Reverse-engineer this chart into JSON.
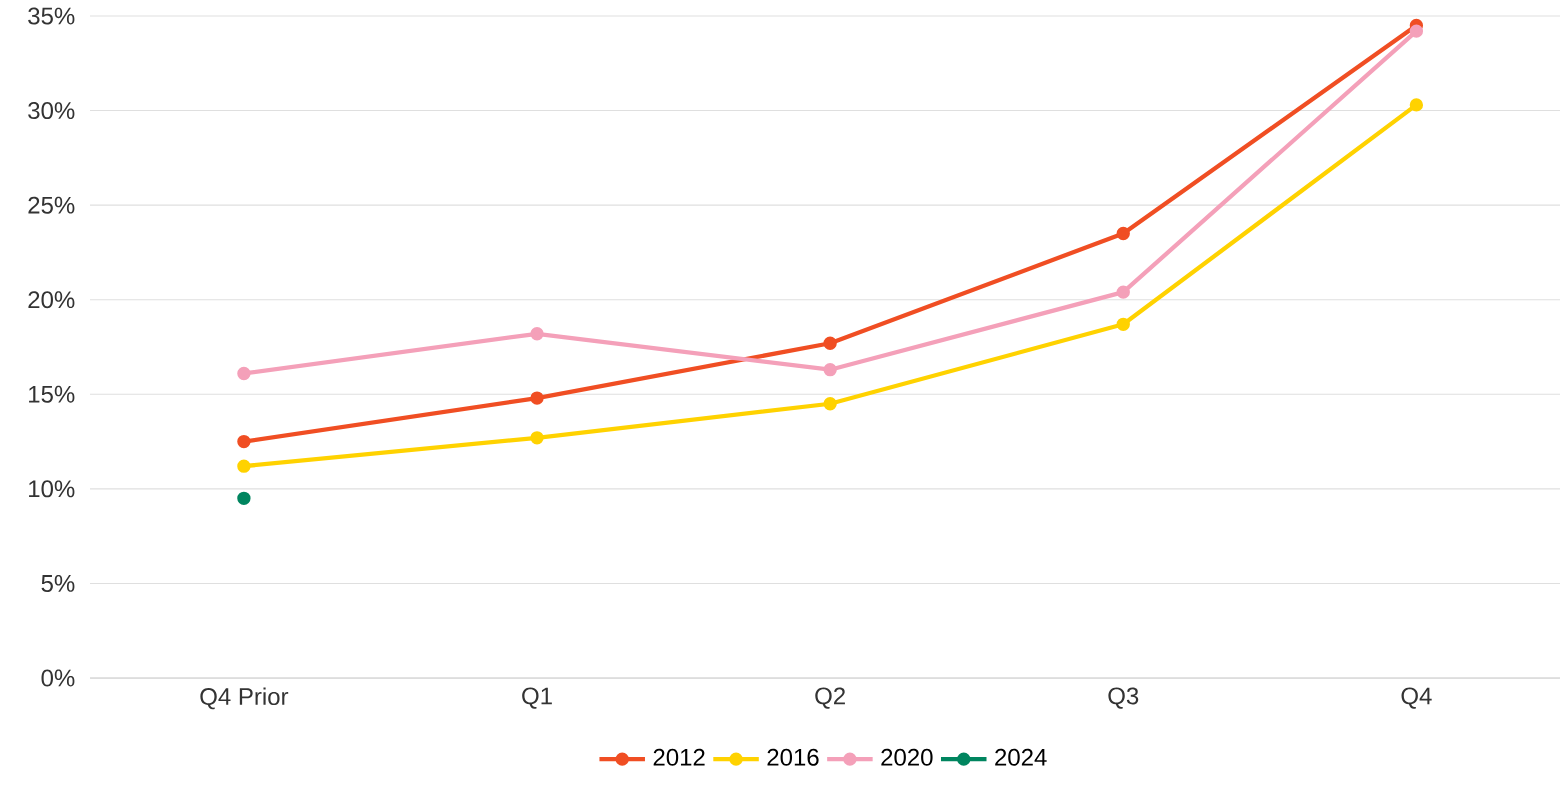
{
  "chart_data": {
    "type": "line",
    "categories": [
      "Q4 Prior",
      "Q1",
      "Q2",
      "Q3",
      "Q4"
    ],
    "series": [
      {
        "name": "2012",
        "color": "#f04e23",
        "values": [
          12.5,
          14.8,
          17.7,
          23.5,
          34.5
        ]
      },
      {
        "name": "2016",
        "color": "#ffd200",
        "values": [
          11.2,
          12.7,
          14.5,
          18.7,
          30.3
        ]
      },
      {
        "name": "2020",
        "color": "#f4a0b9",
        "values": [
          16.1,
          18.2,
          16.3,
          20.4,
          34.2
        ]
      },
      {
        "name": "2024",
        "color": "#00855f",
        "values": [
          9.5,
          null,
          null,
          null,
          null
        ]
      }
    ],
    "ylim": [
      0,
      35
    ],
    "yticks": [
      {
        "value": 0,
        "label": "0%"
      },
      {
        "value": 5,
        "label": "5%"
      },
      {
        "value": 10,
        "label": "10%"
      },
      {
        "value": 15,
        "label": "15%"
      },
      {
        "value": 20,
        "label": "20%"
      },
      {
        "value": 25,
        "label": "25%"
      },
      {
        "value": 30,
        "label": "30%"
      },
      {
        "value": 35,
        "label": "35%"
      }
    ],
    "grid": "y",
    "legend": "bottom",
    "marker": "circle",
    "line_style": "solid"
  }
}
